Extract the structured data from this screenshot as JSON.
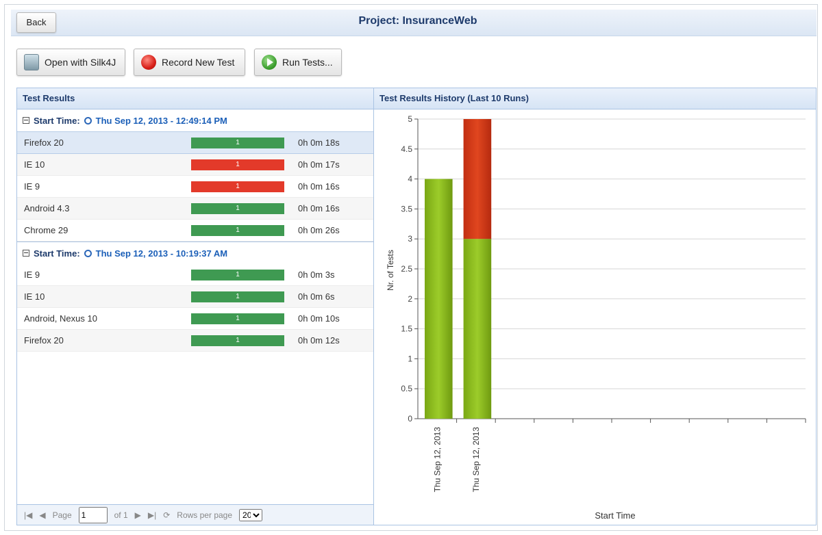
{
  "header": {
    "back_label": "Back",
    "title": "Project: InsuranceWeb"
  },
  "toolbar": {
    "open_label": "Open with Silk4J",
    "record_label": "Record New Test",
    "run_label": "Run Tests..."
  },
  "results_panel": {
    "title": "Test Results",
    "group_label": "Start Time:",
    "groups": [
      {
        "start_time": "Thu Sep 12, 2013 - 12:49:14 PM",
        "rows": [
          {
            "name": "Firefox 20",
            "count": "1",
            "status": "pass",
            "duration": "0h 0m 18s"
          },
          {
            "name": "IE 10",
            "count": "1",
            "status": "fail",
            "duration": "0h 0m 17s"
          },
          {
            "name": "IE 9",
            "count": "1",
            "status": "fail",
            "duration": "0h 0m 16s"
          },
          {
            "name": "Android 4.3",
            "count": "1",
            "status": "pass",
            "duration": "0h 0m 16s"
          },
          {
            "name": "Chrome 29",
            "count": "1",
            "status": "pass",
            "duration": "0h 0m 26s"
          }
        ]
      },
      {
        "start_time": "Thu Sep 12, 2013 - 10:19:37 AM",
        "rows": [
          {
            "name": "IE 9",
            "count": "1",
            "status": "pass",
            "duration": "0h 0m 3s"
          },
          {
            "name": "IE 10",
            "count": "1",
            "status": "pass",
            "duration": "0h 0m 6s"
          },
          {
            "name": "Android, Nexus 10",
            "count": "1",
            "status": "pass",
            "duration": "0h 0m 10s"
          },
          {
            "name": "Firefox 20",
            "count": "1",
            "status": "pass",
            "duration": "0h 0m 12s"
          }
        ]
      }
    ],
    "pager": {
      "page_label": "Page",
      "page_value": "1",
      "of_label": "of 1",
      "rows_label": "Rows per page",
      "rows_value": "20"
    }
  },
  "history_panel": {
    "title": "Test Results History (Last 10 Runs)"
  },
  "chart_data": {
    "type": "bar",
    "stacked": true,
    "categories": [
      "Thu Sep 12, 2013",
      "Thu Sep 12, 2013"
    ],
    "series": [
      {
        "status": "passed",
        "color": "#8cbf1e",
        "values": [
          4,
          3
        ]
      },
      {
        "status": "failed",
        "color": "#d63a1a",
        "values": [
          0,
          2
        ]
      }
    ],
    "ylabel": "Nr. of Tests",
    "xlabel": "Start Time",
    "ylim": [
      0,
      5
    ],
    "yticks": [
      "0",
      "0.5",
      "1",
      "1.5",
      "2",
      "2.5",
      "3",
      "3.5",
      "4",
      "4.5",
      "5"
    ],
    "total_slots": 10,
    "grid": true
  },
  "colors": {
    "pass": "#3f9a52",
    "fail": "#e33a2a",
    "header_text": "#1d3a6b"
  }
}
